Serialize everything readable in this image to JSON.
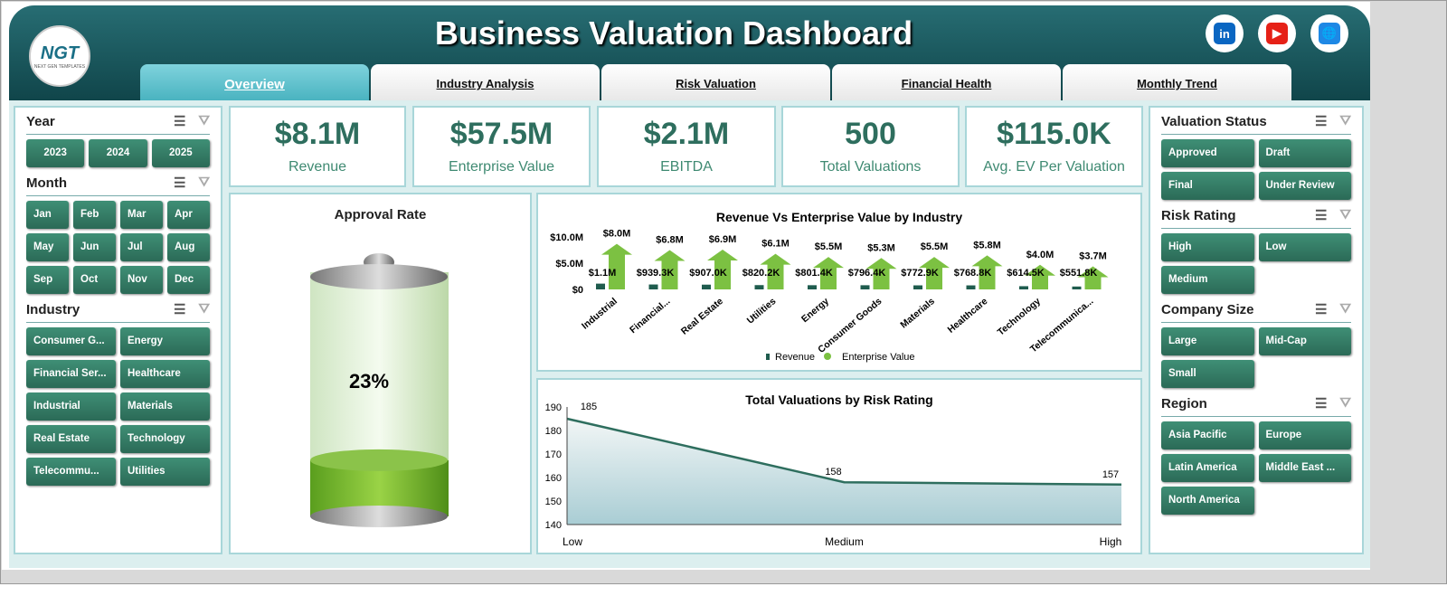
{
  "header": {
    "title": "Business Valuation Dashboard",
    "logo_text": "NGT",
    "logo_sub": "NEXT GEN TEMPLATES",
    "social": [
      {
        "name": "linkedin-icon",
        "glyph": "in",
        "color": "#0a66c2"
      },
      {
        "name": "youtube-icon",
        "glyph": "▶",
        "color": "#e62117"
      },
      {
        "name": "globe-icon",
        "glyph": "🌐",
        "color": "#1e88e5"
      }
    ]
  },
  "tabs": [
    {
      "label": "Overview",
      "active": true
    },
    {
      "label": "Industry Analysis"
    },
    {
      "label": "Risk Valuation"
    },
    {
      "label": "Financial Health"
    },
    {
      "label": "Monthly Trend"
    }
  ],
  "kpis": [
    {
      "value": "$8.1M",
      "label": "Revenue"
    },
    {
      "value": "$57.5M",
      "label": "Enterprise Value"
    },
    {
      "value": "$2.1M",
      "label": "EBITDA"
    },
    {
      "value": "500",
      "label": "Total Valuations"
    },
    {
      "value": "$115.0K",
      "label": "Avg. EV Per Valuation"
    }
  ],
  "left_slicers": [
    {
      "title": "Year",
      "cols": 3,
      "center": true,
      "items": [
        "2023",
        "2024",
        "2025"
      ]
    },
    {
      "title": "Month",
      "cols": 4,
      "center": false,
      "items": [
        "Jan",
        "Feb",
        "Mar",
        "Apr",
        "May",
        "Jun",
        "Jul",
        "Aug",
        "Sep",
        "Oct",
        "Nov",
        "Dec"
      ]
    },
    {
      "title": "Industry",
      "cols": 2,
      "center": false,
      "items": [
        "Consumer G...",
        "Energy",
        "Financial Ser...",
        "Healthcare",
        "Industrial",
        "Materials",
        "Real Estate",
        "Technology",
        "Telecommu...",
        "Utilities"
      ]
    }
  ],
  "right_slicers": [
    {
      "title": "Valuation Status",
      "cols": 2,
      "items": [
        "Approved",
        "Draft",
        "Final",
        "Under Review"
      ]
    },
    {
      "title": "Risk Rating",
      "cols": 2,
      "items": [
        "High",
        "Low",
        "Medium"
      ]
    },
    {
      "title": "Company Size",
      "cols": 2,
      "items": [
        "Large",
        "Mid-Cap",
        "Small"
      ]
    },
    {
      "title": "Region",
      "cols": 2,
      "items": [
        "Asia Pacific",
        "Europe",
        "Latin America",
        "Middle East ...",
        "North America"
      ]
    }
  ],
  "approval": {
    "title": "Approval Rate",
    "value_label": "23%",
    "value": 0.23
  },
  "chart_data": [
    {
      "type": "bar",
      "title": "Revenue Vs Enterprise Value by Industry",
      "categories": [
        "Industrial",
        "Financial...",
        "Real Estate",
        "Utilities",
        "Energy",
        "Consumer Goods",
        "Materials",
        "Healthcare",
        "Technology",
        "Telecommunica..."
      ],
      "yticks": [
        "$0",
        "$5.0M",
        "$10.0M"
      ],
      "ylim": [
        0,
        10
      ],
      "series": [
        {
          "name": "Revenue",
          "color": "#1f5c4e",
          "values": [
            1.1,
            0.9393,
            0.907,
            0.8202,
            0.8014,
            0.7964,
            0.7729,
            0.7688,
            0.6145,
            0.5518
          ],
          "labels": [
            "$1.1M",
            "$939.3K",
            "$907.0K",
            "$820.2K",
            "$801.4K",
            "$796.4K",
            "$772.9K",
            "$768.8K",
            "$614.5K",
            "$551.8K"
          ]
        },
        {
          "name": "Enterprise Value",
          "color": "#7cc142",
          "values": [
            8.0,
            6.8,
            6.9,
            6.1,
            5.5,
            5.3,
            5.5,
            5.8,
            4.0,
            3.7
          ],
          "labels": [
            "$8.0M",
            "$6.8M",
            "$6.9M",
            "$6.1M",
            "$5.5M",
            "$5.3M",
            "$5.5M",
            "$5.8M",
            "$4.0M",
            "$3.7M"
          ]
        }
      ]
    },
    {
      "type": "area",
      "title": "Total Valuations by Risk Rating",
      "categories": [
        "Low",
        "Medium",
        "High"
      ],
      "values": [
        185,
        158,
        157
      ],
      "ylim": [
        140,
        190
      ],
      "yticks": [
        "140",
        "150",
        "160",
        "170",
        "180",
        "190"
      ],
      "color": "#2e6e5e"
    }
  ]
}
